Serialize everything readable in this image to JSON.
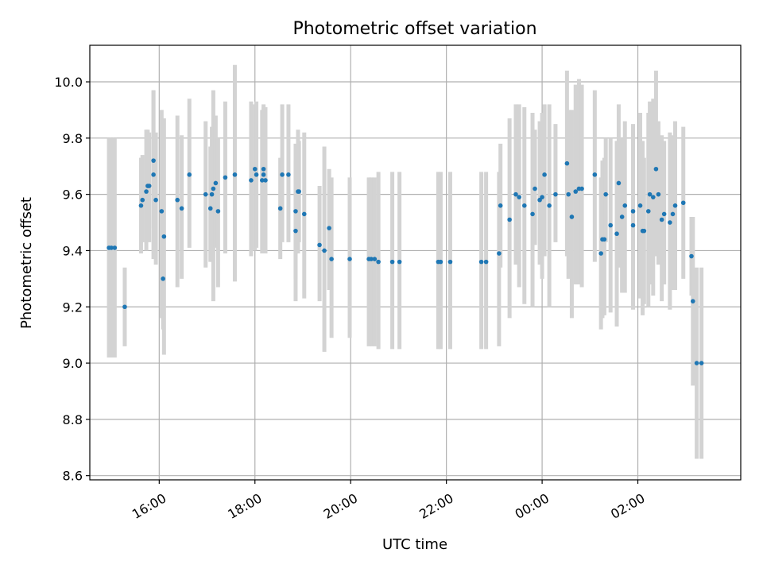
{
  "chart_data": {
    "type": "scatter",
    "title": "Photometric offset variation",
    "xlabel": "UTC time",
    "ylabel": "Photometric offset",
    "xlim": [
      14.55,
      28.15
    ],
    "ylim": [
      8.585,
      10.13
    ],
    "x_ticks": [
      {
        "value": 16,
        "label": "16:00"
      },
      {
        "value": 18,
        "label": "18:00"
      },
      {
        "value": 20,
        "label": "20:00"
      },
      {
        "value": 22,
        "label": "22:00"
      },
      {
        "value": 24,
        "label": "00:00"
      },
      {
        "value": 26,
        "label": "02:00"
      }
    ],
    "y_ticks": [
      {
        "value": 8.6,
        "label": "8.6"
      },
      {
        "value": 8.8,
        "label": "8.8"
      },
      {
        "value": 9.0,
        "label": "9.0"
      },
      {
        "value": 9.2,
        "label": "9.2"
      },
      {
        "value": 9.4,
        "label": "9.4"
      },
      {
        "value": 9.6,
        "label": "9.6"
      },
      {
        "value": 9.8,
        "label": "9.8"
      },
      {
        "value": 10.0,
        "label": "10.0"
      }
    ],
    "grid": true,
    "marker_color": "#1f77b4",
    "errorbar_color": "#d3d3d3",
    "points": [
      [
        14.95,
        9.41,
        9.02,
        9.8
      ],
      [
        15.0,
        9.41,
        9.02,
        9.8
      ],
      [
        15.07,
        9.41,
        9.02,
        9.8
      ],
      [
        15.28,
        9.2,
        9.06,
        9.34
      ],
      [
        15.62,
        9.56,
        9.39,
        9.73
      ],
      [
        15.65,
        9.58,
        9.43,
        9.74
      ],
      [
        15.73,
        9.61,
        9.4,
        9.83
      ],
      [
        15.76,
        9.63,
        9.44,
        9.83
      ],
      [
        15.79,
        9.63,
        9.43,
        9.82
      ],
      [
        15.88,
        9.72,
        9.48,
        9.97
      ],
      [
        15.88,
        9.67,
        9.37,
        9.97
      ],
      [
        15.93,
        9.58,
        9.35,
        9.82
      ],
      [
        16.05,
        9.54,
        9.16,
        9.9
      ],
      [
        16.08,
        9.3,
        9.12,
        9.5
      ],
      [
        16.1,
        9.45,
        9.03,
        9.87
      ],
      [
        16.38,
        9.58,
        9.27,
        9.88
      ],
      [
        16.47,
        9.55,
        9.3,
        9.81
      ],
      [
        16.63,
        9.67,
        9.41,
        9.94
      ],
      [
        16.97,
        9.6,
        9.34,
        9.86
      ],
      [
        17.07,
        9.55,
        9.36,
        9.77
      ],
      [
        17.1,
        9.6,
        9.36,
        9.84
      ],
      [
        17.13,
        9.62,
        9.22,
        9.97
      ],
      [
        17.18,
        9.64,
        9.41,
        9.88
      ],
      [
        17.23,
        9.54,
        9.27,
        9.8
      ],
      [
        17.38,
        9.66,
        9.39,
        9.93
      ],
      [
        17.58,
        9.67,
        9.29,
        10.06
      ],
      [
        17.92,
        9.65,
        9.38,
        9.93
      ],
      [
        18.0,
        9.69,
        9.4,
        9.92
      ],
      [
        18.03,
        9.67,
        9.41,
        9.93
      ],
      [
        18.15,
        9.65,
        9.39,
        9.9
      ],
      [
        18.18,
        9.69,
        9.46,
        9.92
      ],
      [
        18.18,
        9.67,
        9.42,
        9.91
      ],
      [
        18.22,
        9.65,
        9.39,
        9.91
      ],
      [
        18.53,
        9.55,
        9.37,
        9.73
      ],
      [
        18.57,
        9.67,
        9.43,
        9.92
      ],
      [
        18.7,
        9.67,
        9.43,
        9.92
      ],
      [
        18.85,
        9.47,
        9.22,
        9.72
      ],
      [
        18.85,
        9.54,
        9.3,
        9.78
      ],
      [
        18.9,
        9.61,
        9.39,
        9.83
      ],
      [
        18.92,
        9.61,
        9.43,
        9.79
      ],
      [
        19.03,
        9.53,
        9.23,
        9.82
      ],
      [
        19.35,
        9.42,
        9.22,
        9.63
      ],
      [
        19.45,
        9.4,
        9.04,
        9.77
      ],
      [
        19.55,
        9.48,
        9.26,
        9.69
      ],
      [
        19.6,
        9.37,
        9.09,
        9.66
      ],
      [
        19.98,
        9.37,
        9.09,
        9.66
      ],
      [
        20.38,
        9.37,
        9.06,
        9.66
      ],
      [
        20.43,
        9.37,
        9.06,
        9.66
      ],
      [
        20.5,
        9.37,
        9.06,
        9.66
      ],
      [
        20.58,
        9.36,
        9.05,
        9.68
      ],
      [
        20.87,
        9.36,
        9.05,
        9.68
      ],
      [
        21.02,
        9.36,
        9.05,
        9.68
      ],
      [
        21.83,
        9.36,
        9.05,
        9.68
      ],
      [
        21.88,
        9.36,
        9.05,
        9.68
      ],
      [
        22.08,
        9.36,
        9.05,
        9.68
      ],
      [
        22.73,
        9.36,
        9.05,
        9.68
      ],
      [
        22.83,
        9.36,
        9.05,
        9.68
      ],
      [
        23.1,
        9.39,
        9.06,
        9.68
      ],
      [
        23.13,
        9.56,
        9.34,
        9.78
      ],
      [
        23.32,
        9.51,
        9.16,
        9.87
      ],
      [
        23.45,
        9.6,
        9.35,
        9.92
      ],
      [
        23.52,
        9.59,
        9.27,
        9.92
      ],
      [
        23.63,
        9.56,
        9.21,
        9.91
      ],
      [
        23.8,
        9.53,
        9.2,
        9.89
      ],
      [
        23.85,
        9.62,
        9.42,
        9.83
      ],
      [
        23.95,
        9.58,
        9.35,
        9.86
      ],
      [
        24.0,
        9.59,
        9.3,
        9.89
      ],
      [
        24.05,
        9.67,
        9.38,
        9.92
      ],
      [
        24.15,
        9.56,
        9.2,
        9.92
      ],
      [
        24.28,
        9.6,
        9.43,
        9.85
      ],
      [
        24.52,
        9.71,
        9.38,
        10.04
      ],
      [
        24.55,
        9.6,
        9.3,
        9.9
      ],
      [
        24.62,
        9.52,
        9.16,
        9.9
      ],
      [
        24.7,
        9.61,
        9.28,
        9.99
      ],
      [
        24.77,
        9.62,
        9.28,
        10.01
      ],
      [
        24.83,
        9.62,
        9.27,
        9.99
      ],
      [
        25.1,
        9.67,
        9.36,
        9.97
      ],
      [
        25.23,
        9.39,
        9.12,
        9.66
      ],
      [
        25.26,
        9.44,
        9.16,
        9.72
      ],
      [
        25.3,
        9.44,
        9.17,
        9.73
      ],
      [
        25.33,
        9.6,
        9.43,
        9.8
      ],
      [
        25.43,
        9.49,
        9.18,
        9.8
      ],
      [
        25.56,
        9.46,
        9.13,
        9.79
      ],
      [
        25.6,
        9.64,
        9.34,
        9.92
      ],
      [
        25.67,
        9.52,
        9.25,
        9.8
      ],
      [
        25.73,
        9.56,
        9.25,
        9.86
      ],
      [
        25.9,
        9.49,
        9.19,
        9.8
      ],
      [
        25.9,
        9.54,
        9.23,
        9.85
      ],
      [
        26.05,
        9.56,
        9.23,
        9.89
      ],
      [
        26.1,
        9.47,
        9.17,
        9.79
      ],
      [
        26.13,
        9.47,
        9.21,
        9.73
      ],
      [
        26.22,
        9.54,
        9.2,
        9.89
      ],
      [
        26.25,
        9.6,
        9.28,
        9.93
      ],
      [
        26.32,
        9.59,
        9.24,
        9.94
      ],
      [
        26.38,
        9.69,
        9.38,
        10.04
      ],
      [
        26.43,
        9.6,
        9.35,
        9.86
      ],
      [
        26.5,
        9.51,
        9.22,
        9.81
      ],
      [
        26.55,
        9.53,
        9.28,
        9.79
      ],
      [
        26.67,
        9.5,
        9.19,
        9.82
      ],
      [
        26.73,
        9.53,
        9.26,
        9.81
      ],
      [
        26.78,
        9.56,
        9.26,
        9.86
      ],
      [
        26.95,
        9.57,
        9.3,
        9.84
      ],
      [
        27.12,
        9.38,
        9.24,
        9.52
      ],
      [
        27.15,
        9.22,
        8.92,
        9.52
      ],
      [
        27.23,
        9.0,
        8.66,
        9.34
      ],
      [
        27.33,
        9.0,
        8.66,
        9.34
      ]
    ]
  }
}
